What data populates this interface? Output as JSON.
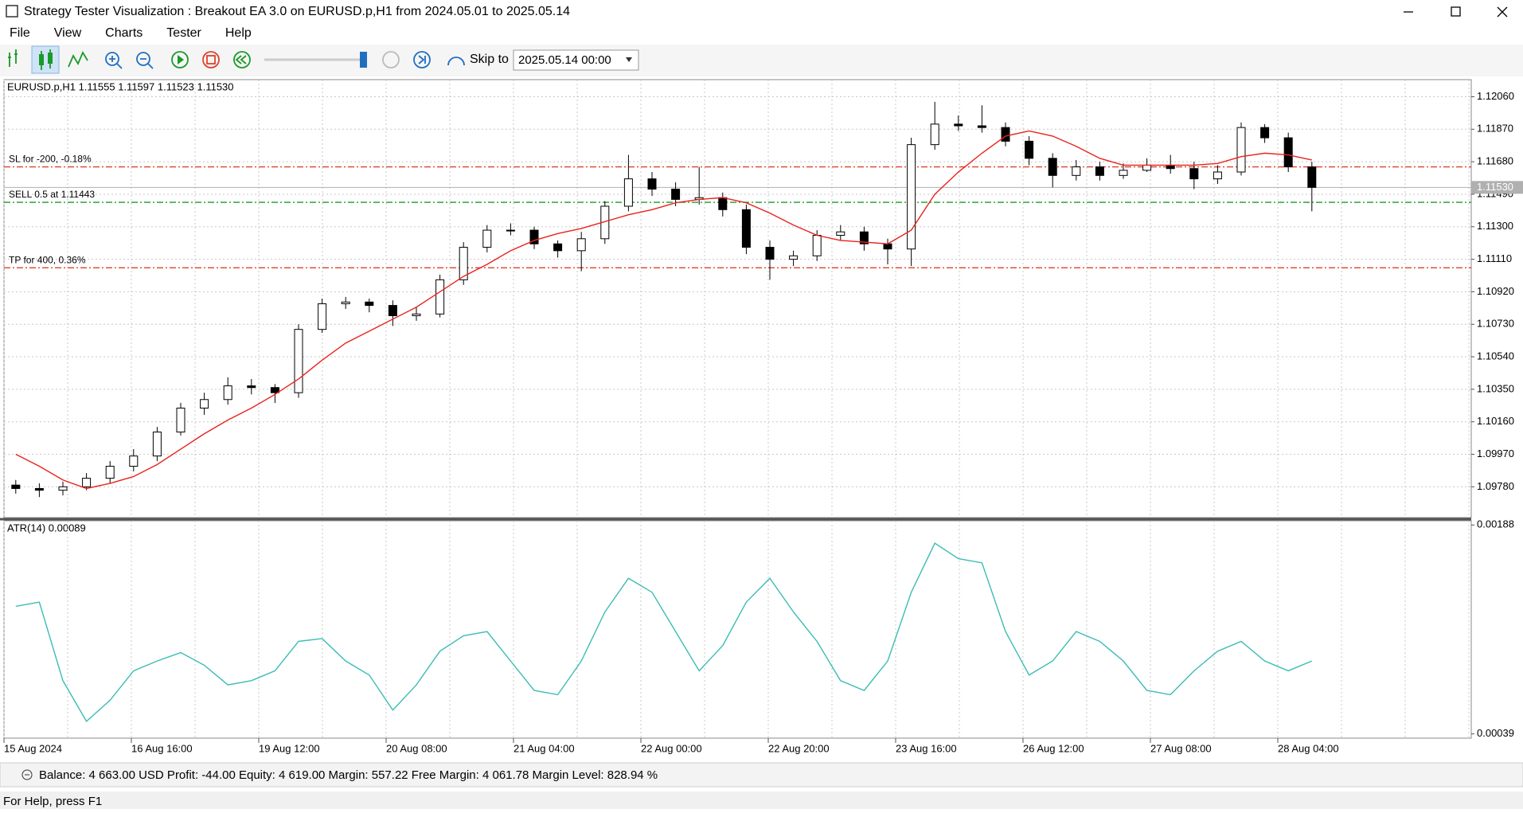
{
  "window": {
    "title": "Strategy Tester Visualization : Breakout EA 3.0 on EURUSD.p,H1 from 2024.05.01 to 2025.05.14"
  },
  "menu": [
    "File",
    "View",
    "Charts",
    "Tester",
    "Help"
  ],
  "toolbar": {
    "skip_label": "Skip to",
    "skip_date": "2025.05.14 00:00"
  },
  "chart_data": [
    {
      "type": "candlestick",
      "title": "EURUSD.p,H1  1.11555 1.11597 1.11523 1.11530",
      "x_axis_labels": [
        "15 Aug 2024",
        "16 Aug 16:00",
        "19 Aug 12:00",
        "20 Aug 08:00",
        "21 Aug 04:00",
        "22 Aug 00:00",
        "22 Aug 20:00",
        "23 Aug 16:00",
        "26 Aug 12:00",
        "27 Aug 08:00",
        "28 Aug 04:00"
      ],
      "open": [
        1.0979,
        1.0977,
        1.0976,
        1.0978,
        1.0983,
        1.099,
        1.0996,
        1.101,
        1.1024,
        1.1029,
        1.1037,
        1.1036,
        1.1033,
        1.107,
        1.1085,
        1.1086,
        1.1084,
        1.1078,
        1.1079,
        1.1099,
        1.1118,
        1.1128,
        1.1128,
        1.112,
        1.1116,
        1.1123,
        1.1142,
        1.1158,
        1.1152,
        1.1146,
        1.1147,
        1.114,
        1.1118,
        1.1111,
        1.1113,
        1.1125,
        1.1127,
        1.112,
        1.1117,
        1.1178,
        1.119,
        1.1189,
        1.1188,
        1.118,
        1.117,
        1.116,
        1.1165,
        1.116,
        1.1163,
        1.1166,
        1.1164,
        1.1158,
        1.1162,
        1.1188,
        1.1182,
        1.1165
      ],
      "high": [
        1.0982,
        1.098,
        1.0981,
        1.0986,
        1.0993,
        1.1,
        1.1013,
        1.1027,
        1.1033,
        1.1042,
        1.1041,
        1.1038,
        1.1073,
        1.1088,
        1.1089,
        1.1088,
        1.1087,
        1.1083,
        1.1102,
        1.1121,
        1.1131,
        1.1132,
        1.113,
        1.1122,
        1.1127,
        1.1145,
        1.1172,
        1.1162,
        1.1156,
        1.1165,
        1.115,
        1.1143,
        1.1122,
        1.1116,
        1.1128,
        1.1131,
        1.113,
        1.1123,
        1.1182,
        1.1203,
        1.1195,
        1.1201,
        1.1191,
        1.1183,
        1.1173,
        1.1169,
        1.1168,
        1.1167,
        1.117,
        1.1172,
        1.1168,
        1.1166,
        1.1191,
        1.119,
        1.1185,
        1.1168
      ],
      "low": [
        1.0974,
        1.0972,
        1.0973,
        1.0976,
        1.098,
        1.0987,
        1.0993,
        1.1008,
        1.102,
        1.1026,
        1.1032,
        1.1027,
        1.103,
        1.1068,
        1.1082,
        1.108,
        1.1072,
        1.1075,
        1.1077,
        1.1096,
        1.1115,
        1.1125,
        1.1117,
        1.1112,
        1.1104,
        1.112,
        1.1139,
        1.1148,
        1.1142,
        1.1143,
        1.1136,
        1.1114,
        1.1099,
        1.1107,
        1.111,
        1.1122,
        1.1116,
        1.1108,
        1.1107,
        1.1175,
        1.1186,
        1.1185,
        1.1177,
        1.1166,
        1.1153,
        1.1157,
        1.1157,
        1.1158,
        1.1162,
        1.1161,
        1.1152,
        1.1155,
        1.116,
        1.1179,
        1.1162,
        1.1139
      ],
      "close": [
        1.0977,
        1.0976,
        1.0978,
        1.0983,
        1.099,
        1.0996,
        1.101,
        1.1024,
        1.1029,
        1.1037,
        1.1036,
        1.1033,
        1.107,
        1.1085,
        1.1086,
        1.1084,
        1.1078,
        1.1079,
        1.1099,
        1.1118,
        1.1128,
        1.1128,
        1.112,
        1.1116,
        1.1123,
        1.1142,
        1.1158,
        1.1152,
        1.1146,
        1.1147,
        1.114,
        1.1118,
        1.1111,
        1.1113,
        1.1125,
        1.1127,
        1.112,
        1.1117,
        1.1178,
        1.119,
        1.1189,
        1.1188,
        1.118,
        1.117,
        1.116,
        1.1165,
        1.116,
        1.1163,
        1.1166,
        1.1164,
        1.1158,
        1.1162,
        1.1188,
        1.1182,
        1.1165,
        1.1153
      ],
      "ma": {
        "color": "#e8231e",
        "values": [
          1.0997,
          1.099,
          1.0982,
          1.0977,
          1.098,
          1.0984,
          1.0991,
          1.1,
          1.1009,
          1.1017,
          1.1024,
          1.1032,
          1.1041,
          1.1052,
          1.1062,
          1.1069,
          1.1076,
          1.1083,
          1.1092,
          1.1101,
          1.1108,
          1.1116,
          1.1122,
          1.1126,
          1.1129,
          1.1133,
          1.1137,
          1.114,
          1.1144,
          1.1146,
          1.1147,
          1.1144,
          1.1138,
          1.1131,
          1.1125,
          1.1122,
          1.1121,
          1.112,
          1.1128,
          1.1149,
          1.1162,
          1.1173,
          1.1183,
          1.1186,
          1.1183,
          1.1177,
          1.117,
          1.1166,
          1.1166,
          1.1166,
          1.1166,
          1.1167,
          1.1171,
          1.1173,
          1.1172,
          1.1169
        ]
      },
      "levels": [
        {
          "label": "SL for -200, -0.18%",
          "value": 1.1165,
          "color": "#e0402a"
        },
        {
          "label": "SELL 0.5 at 1.11443",
          "value": 1.11443,
          "color": "#1a9a2a"
        },
        {
          "label": "TP for 400, 0.36%",
          "value": 1.1106,
          "color": "#e0402a"
        }
      ],
      "current_price": {
        "value": 1.1153,
        "label": "1.11530"
      },
      "ylim": [
        1.096,
        1.1216
      ],
      "yticks": [
        {
          "value": 1.1206,
          "label": "1.12060"
        },
        {
          "value": 1.1187,
          "label": "1.11870"
        },
        {
          "value": 1.1168,
          "label": "1.11680"
        },
        {
          "value": 1.1149,
          "label": "1.11490"
        },
        {
          "value": 1.113,
          "label": "1.11300"
        },
        {
          "value": 1.1111,
          "label": "1.11110"
        },
        {
          "value": 1.1092,
          "label": "1.10920"
        },
        {
          "value": 1.1073,
          "label": "1.10730"
        },
        {
          "value": 1.1054,
          "label": "1.10540"
        },
        {
          "value": 1.1035,
          "label": "1.10350"
        },
        {
          "value": 1.1016,
          "label": "1.10160"
        },
        {
          "value": 1.0997,
          "label": "1.09970"
        },
        {
          "value": 1.0978,
          "label": "1.09780"
        }
      ],
      "grid": true
    },
    {
      "type": "line",
      "title": "ATR(14) 0.00089",
      "color": "#3cbdb4",
      "values": [
        0.0013,
        0.00133,
        0.00077,
        0.00048,
        0.00063,
        0.00084,
        0.00091,
        0.00097,
        0.00088,
        0.00074,
        0.00077,
        0.00084,
        0.00105,
        0.00107,
        0.00091,
        0.00081,
        0.00056,
        0.00074,
        0.00098,
        0.00109,
        0.00112,
        0.00091,
        0.0007,
        0.00067,
        0.00091,
        0.00126,
        0.0015,
        0.0014,
        0.00112,
        0.00084,
        0.00102,
        0.00133,
        0.0015,
        0.00126,
        0.00105,
        0.00077,
        0.0007,
        0.00091,
        0.0014,
        0.00175,
        0.00164,
        0.00161,
        0.00112,
        0.00081,
        0.00091,
        0.00112,
        0.00105,
        0.00091,
        0.0007,
        0.00067,
        0.00084,
        0.00098,
        0.00105,
        0.00091,
        0.00084,
        0.00091
      ],
      "ylim": [
        0.00036,
        0.00191
      ],
      "yticks": [
        0.00188,
        0.00039
      ]
    }
  ],
  "account_status": "Balance: 4 663.00 USD  Profit: -44.00  Equity: 4 619.00  Margin: 557.22  Free Margin: 4 061.78  Margin Level: 828.94 %",
  "help_text": "For Help, press F1"
}
